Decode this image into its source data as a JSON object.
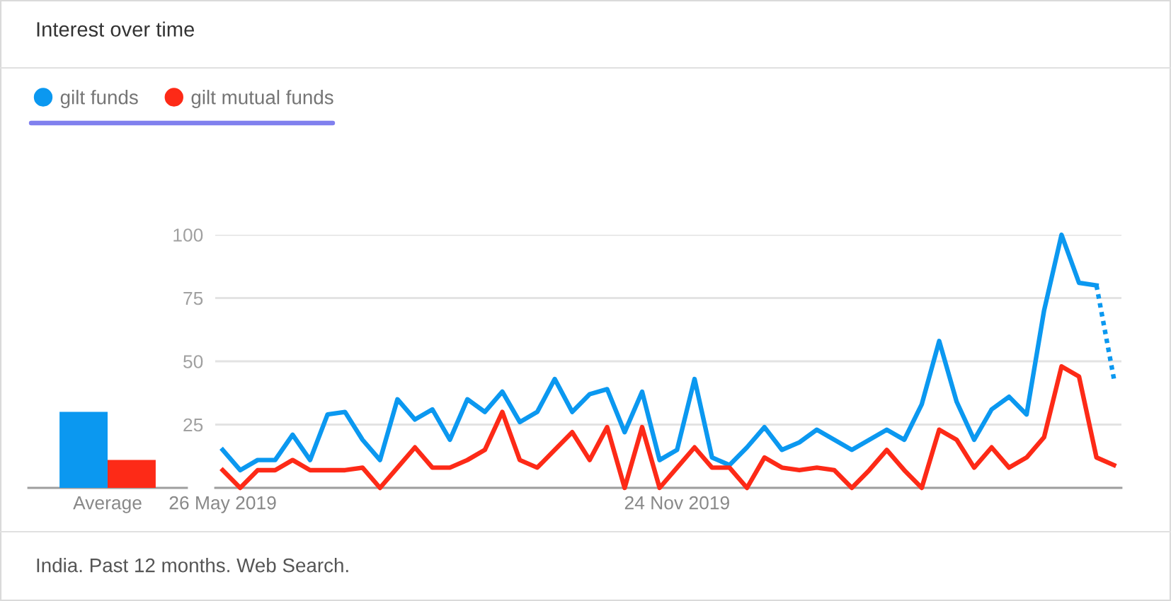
{
  "chart_data": [
    {
      "type": "bar",
      "title": "Interest over time",
      "annotations": [
        "India. Past 12 months. Web Search."
      ],
      "categories": [
        "Average"
      ],
      "series": [
        {
          "color": "#0b98f0",
          "values": [
            30
          ]
        },
        {
          "color": "#fd2a17",
          "values": [
            11
          ]
        }
      ],
      "ylim": [
        0,
        100
      ],
      "tick_labels": "x"
    },
    {
      "type": "line",
      "legend": "top left",
      "x": [
        "2019-05-26",
        "2019-06-02",
        "2019-06-09",
        "2019-06-16",
        "2019-06-23",
        "2019-06-30",
        "2019-07-07",
        "2019-07-14",
        "2019-07-21",
        "2019-07-28",
        "2019-08-04",
        "2019-08-11",
        "2019-08-18",
        "2019-08-25",
        "2019-09-01",
        "2019-09-08",
        "2019-09-15",
        "2019-09-22",
        "2019-09-29",
        "2019-10-06",
        "2019-10-13",
        "2019-10-20",
        "2019-10-27",
        "2019-11-03",
        "2019-11-10",
        "2019-11-17",
        "2019-11-24",
        "2019-12-01",
        "2019-12-08",
        "2019-12-15",
        "2019-12-22",
        "2019-12-29",
        "2020-01-05",
        "2020-01-12",
        "2020-01-19",
        "2020-01-26",
        "2020-02-02",
        "2020-02-09",
        "2020-02-16",
        "2020-02-23",
        "2020-03-01",
        "2020-03-08",
        "2020-03-15",
        "2020-03-22",
        "2020-03-29",
        "2020-04-05",
        "2020-04-12",
        "2020-04-19",
        "2020-04-26",
        "2020-05-03",
        "2020-05-10",
        "2020-05-17"
      ],
      "series": [
        {
          "name": "gilt funds",
          "color": "#0b98f0",
          "values": [
            15,
            7,
            11,
            11,
            21,
            11,
            29,
            30,
            19,
            11,
            35,
            27,
            31,
            19,
            35,
            30,
            38,
            26,
            30,
            43,
            30,
            37,
            39,
            22,
            38,
            11,
            15,
            43,
            12,
            9,
            16,
            24,
            15,
            18,
            23,
            19,
            15,
            19,
            23,
            19,
            33,
            58,
            34,
            19,
            31,
            36,
            29,
            70,
            100,
            81,
            80,
            null
          ]
        },
        {
          "name": "gilt mutual funds",
          "color": "#fd2a17",
          "values": [
            7,
            0,
            7,
            7,
            11,
            7,
            7,
            7,
            8,
            0,
            8,
            16,
            8,
            8,
            11,
            15,
            30,
            11,
            8,
            15,
            22,
            11,
            24,
            0,
            24,
            0,
            8,
            16,
            8,
            8,
            0,
            12,
            8,
            7,
            8,
            7,
            0,
            7,
            15,
            7,
            0,
            23,
            19,
            8,
            16,
            8,
            12,
            20,
            48,
            44,
            12,
            9
          ]
        },
        {
          "color": "#0b98f0",
          "line_style": "dotted",
          "x": [
            "2020-05-10",
            "2020-05-17"
          ],
          "values": [
            80,
            43
          ]
        }
      ],
      "xlim": [
        "2019-05-23",
        "2020-05-20"
      ],
      "xticks": [
        {
          "value": "2019-05-26",
          "label": "26 May 2019"
        },
        {
          "value": "2019-11-24",
          "label": "24 Nov 2019"
        }
      ],
      "ylim": [
        0,
        100
      ],
      "yticks": [
        {
          "value": 0,
          "label": null
        },
        25,
        50,
        75,
        100
      ],
      "grid": "y"
    }
  ]
}
